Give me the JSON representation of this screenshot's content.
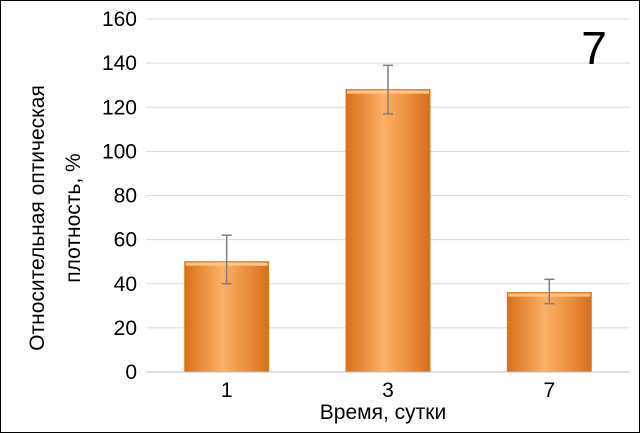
{
  "panel_label": "7",
  "chart_data": {
    "type": "bar",
    "categories": [
      "1",
      "3",
      "7"
    ],
    "values": [
      50,
      128,
      36
    ],
    "error_low": [
      40,
      117,
      31
    ],
    "error_high": [
      62,
      139,
      42
    ],
    "xlabel": "Время, сутки",
    "ylabel_line1": "Относительная оптическая",
    "ylabel_line2": "плотность, %",
    "ylim": [
      0,
      160
    ],
    "yticks": [
      0,
      20,
      40,
      60,
      80,
      100,
      120,
      140,
      160
    ],
    "grid": true,
    "bar_color": "#f28b25",
    "bar_color_light": "#fdb067",
    "bar_color_dark": "#d8701a",
    "grid_color": "#d9d9d9",
    "error_color": "#7f7f7f"
  }
}
